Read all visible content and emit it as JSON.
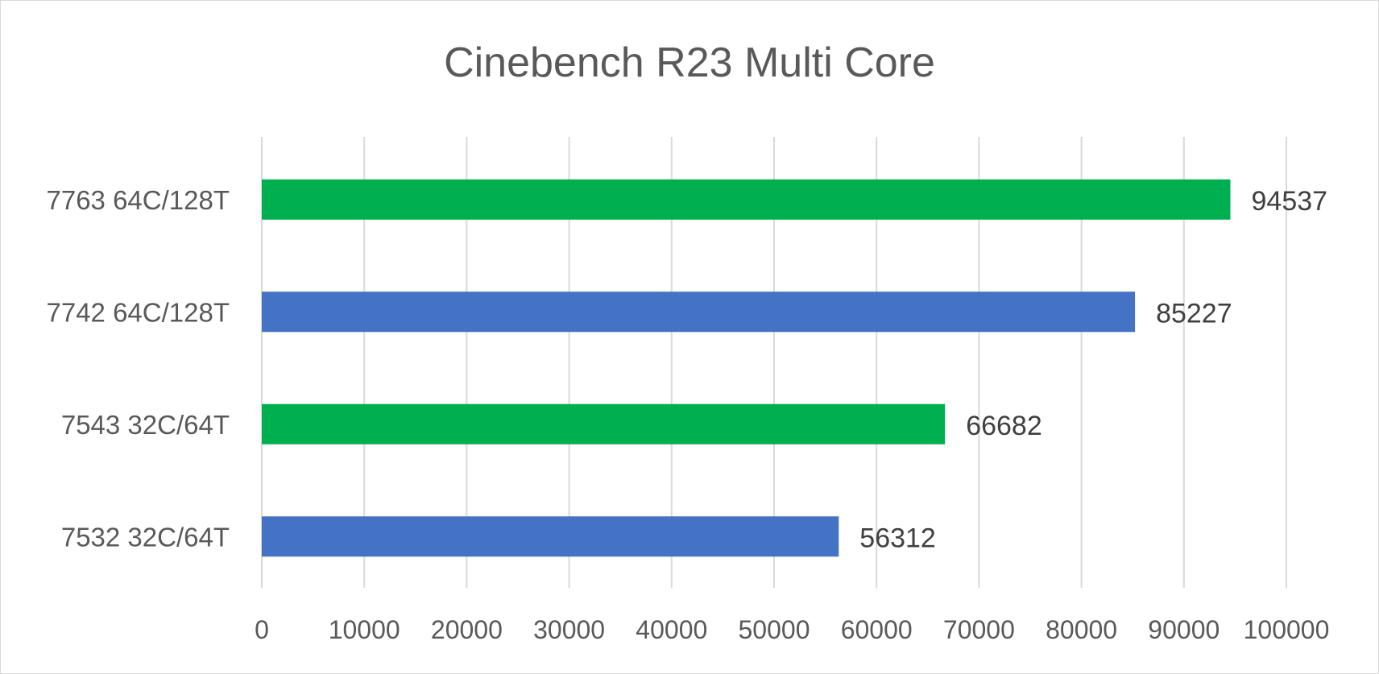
{
  "chart_data": {
    "type": "bar",
    "orientation": "horizontal",
    "title": "Cinebench R23 Multi Core",
    "xlabel": "",
    "ylabel": "",
    "categories": [
      "7763 64C/128T",
      "7742 64C/128T",
      "7543 32C/64T",
      "7532 32C/64T"
    ],
    "values": [
      94537,
      85227,
      66682,
      56312
    ],
    "bar_colors": [
      "#00b050",
      "#4472c4",
      "#00b050",
      "#4472c4"
    ],
    "xlim": [
      0,
      100000
    ],
    "x_ticks": [
      0,
      10000,
      20000,
      30000,
      40000,
      50000,
      60000,
      70000,
      80000,
      90000,
      100000
    ],
    "x_tick_labels": [
      "0",
      "10000",
      "20000",
      "30000",
      "40000",
      "50000",
      "60000",
      "70000",
      "80000",
      "90000",
      "100000"
    ],
    "data_labels": [
      "94537",
      "85227",
      "66682",
      "56312"
    ],
    "grid": true,
    "legend": "none"
  }
}
